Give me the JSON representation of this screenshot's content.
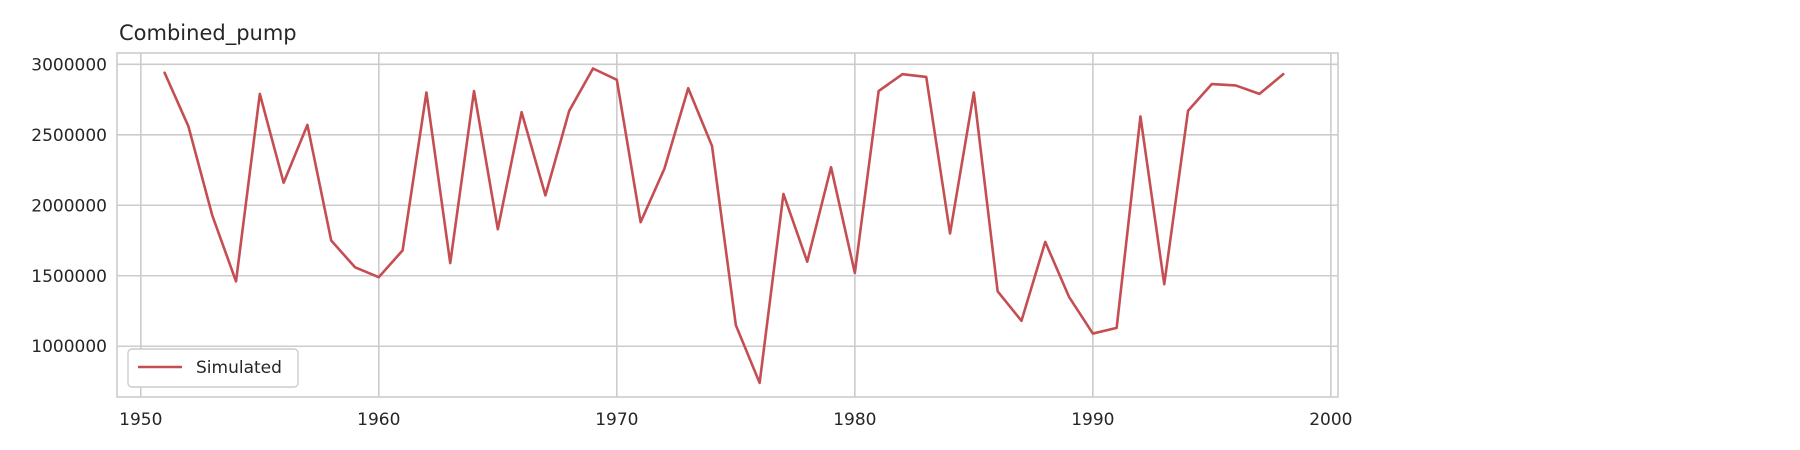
{
  "chart_data": {
    "type": "line",
    "title": "Combined_pump",
    "xlabel": "",
    "ylabel": "",
    "xlim": [
      1949,
      2000.3
    ],
    "ylim": [
      640000,
      3080000
    ],
    "grid": true,
    "legend_placement": "lower-left",
    "x_ticks": [
      1950,
      1960,
      1970,
      1980,
      1990,
      2000
    ],
    "y_ticks": [
      1000000,
      1500000,
      2000000,
      2500000,
      3000000
    ],
    "series": [
      {
        "name": "Simulated",
        "color": "#c44e52",
        "x": [
          1951,
          1952,
          1953,
          1954,
          1955,
          1956,
          1957,
          1958,
          1959,
          1960,
          1961,
          1962,
          1963,
          1964,
          1965,
          1966,
          1967,
          1968,
          1969,
          1970,
          1971,
          1972,
          1973,
          1974,
          1975,
          1976,
          1977,
          1978,
          1979,
          1980,
          1981,
          1982,
          1983,
          1984,
          1985,
          1986,
          1987,
          1988,
          1989,
          1990,
          1991,
          1992,
          1993,
          1994,
          1995,
          1996,
          1997,
          1998
        ],
        "values": [
          2940000,
          2560000,
          1930000,
          1460000,
          2790000,
          2160000,
          2570000,
          1750000,
          1560000,
          1490000,
          1680000,
          2800000,
          1590000,
          2810000,
          1830000,
          2660000,
          2070000,
          2670000,
          2970000,
          2890000,
          1880000,
          2260000,
          2830000,
          2420000,
          1150000,
          740000,
          2080000,
          1600000,
          2270000,
          1520000,
          2810000,
          2930000,
          2910000,
          1800000,
          2800000,
          1390000,
          1180000,
          1740000,
          1350000,
          1090000,
          1130000,
          2630000,
          1440000,
          2670000,
          2860000,
          2850000,
          2790000,
          2930000
        ]
      }
    ]
  }
}
